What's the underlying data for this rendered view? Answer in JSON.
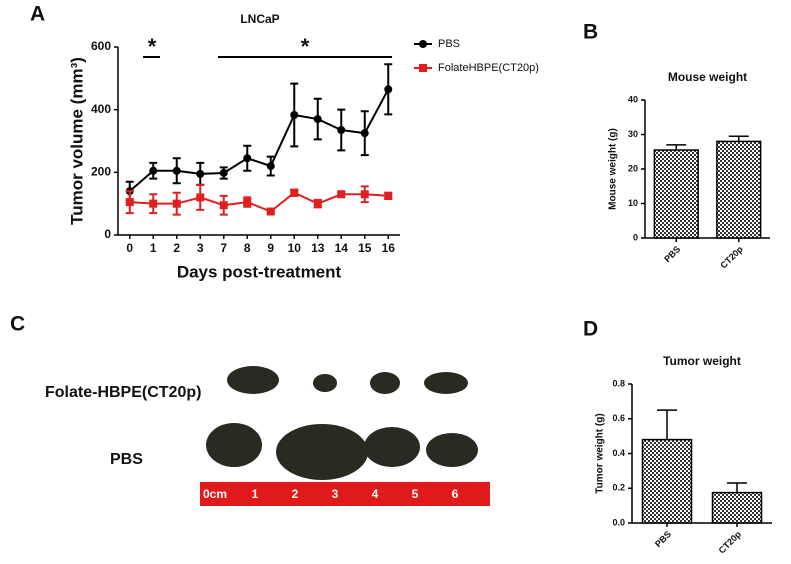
{
  "chart_data": [
    {
      "type": "line",
      "panel": "A",
      "title": "LNCaP",
      "x_label": "Days post-treatment",
      "y_label": "Tumor volume (mm³)",
      "categories": [
        "0",
        "1",
        "2",
        "3",
        "7",
        "8",
        "9",
        "10",
        "13",
        "14",
        "15",
        "16"
      ],
      "series": [
        {
          "name": "PBS",
          "color": "#000000",
          "marker": "circle",
          "values": [
            140,
            205,
            205,
            195,
            198,
            245,
            220,
            383,
            370,
            335,
            325,
            465
          ],
          "errors": [
            30,
            25,
            40,
            35,
            18,
            40,
            30,
            100,
            65,
            65,
            70,
            80
          ]
        },
        {
          "name": "FolateHBPE(CT20p)",
          "color": "#e02020",
          "marker": "square",
          "values": [
            105,
            100,
            100,
            120,
            95,
            105,
            75,
            135,
            100,
            130,
            130,
            125
          ],
          "errors": [
            35,
            30,
            35,
            40,
            30,
            15,
            5,
            10,
            12,
            8,
            25,
            10
          ]
        }
      ],
      "ylim": [
        0,
        600
      ],
      "yticks": [
        0,
        200,
        400,
        600
      ],
      "annotations": [
        "*",
        "*"
      ]
    },
    {
      "type": "bar",
      "panel": "B",
      "title": "Mouse weight",
      "y_label": "Mouse weight (g)",
      "categories": [
        "PBS",
        "CT20p"
      ],
      "values": [
        25.5,
        28
      ],
      "errors": [
        1.5,
        1.5
      ],
      "ylim": [
        0,
        40
      ],
      "yticks": [
        0,
        10,
        20,
        30,
        40
      ]
    },
    {
      "type": "bar",
      "panel": "D",
      "title": "Tumor weight",
      "y_label": "Tumor weight (g)",
      "categories": [
        "PBS",
        "CT20p"
      ],
      "values": [
        0.48,
        0.175
      ],
      "errors": [
        0.17,
        0.055
      ],
      "ylim": [
        0,
        0.8
      ],
      "yticks": [
        {
          "value": 0,
          "label": "0.0"
        },
        0.2,
        0.4,
        0.6,
        0.8
      ]
    }
  ],
  "photo": {
    "panel": "C",
    "labels": [
      "Folate-HBPE(CT20p)",
      "PBS"
    ],
    "ruler": [
      "0cm",
      "1",
      "2",
      "3",
      "4",
      "5",
      "6"
    ]
  }
}
